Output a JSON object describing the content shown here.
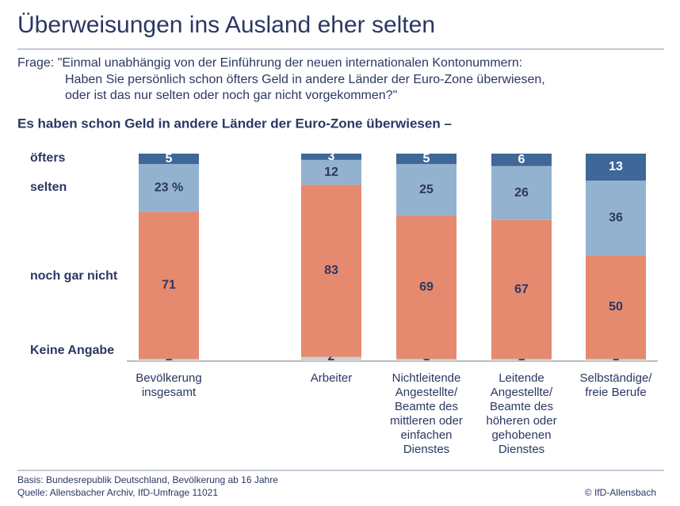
{
  "chart_data": {
    "type": "stacked_bar",
    "title": "Überweisungen ins Ausland eher selten",
    "question": [
      "Frage: \"Einmal unabhängig von der Einführung der neuen internationalen Kontonummern:",
      "Haben Sie persönlich schon öfters Geld in andere Länder der Euro-Zone überwiesen,",
      "oder ist das nur selten oder noch gar nicht vorgekommen?\""
    ],
    "subtitle": "Es haben schon Geld in andere Länder der Euro-Zone überwiesen –",
    "categories": [
      "Bevölkerung\ninsgesamt",
      "Arbeiter",
      "Nichtleitende\nAngestellte/\nBeamte des\nmittleren oder\neinfachen\nDienstes",
      "Leitende\nAngestellte/\nBeamte des\nhöheren oder\ngehobenen\nDienstes",
      "Selbständige/\nfreie Berufe"
    ],
    "series": [
      {
        "name": "Keine Angabe",
        "color": "#cfd0d4",
        "values": [
          1,
          2,
          1,
          1,
          1
        ]
      },
      {
        "name": "noch gar nicht",
        "color": "#e58a6f",
        "values": [
          71,
          83,
          69,
          67,
          50
        ]
      },
      {
        "name": "selten",
        "color": "#93b2cf",
        "values": [
          23,
          12,
          25,
          26,
          36
        ],
        "value_labels": [
          "23 %",
          "12",
          "25",
          "26",
          "36"
        ]
      },
      {
        "name": "öfters",
        "color": "#3f6797",
        "values": [
          5,
          3,
          5,
          6,
          13
        ]
      }
    ],
    "ylim": [
      0,
      100
    ],
    "notes": [
      "Basis: Bundesrepublik Deutschland, Bevölkerung ab 16 Jahre",
      "Quelle: Allensbacher Archiv, IfD-Umfrage 11021"
    ],
    "credit": "© IfD-Allensbach"
  }
}
